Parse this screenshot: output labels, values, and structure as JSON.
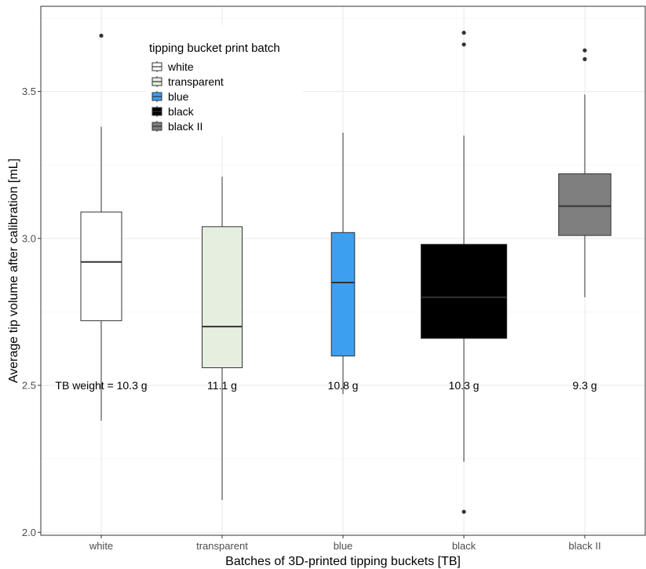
{
  "chart_data": {
    "type": "boxplot",
    "xlabel": "Batches of 3D-printed tipping buckets [TB]",
    "ylabel": "Average tip volume after calibration [mL]",
    "ylim": [
      1.99,
      3.79
    ],
    "yticks": [
      2.0,
      2.5,
      3.0,
      3.5
    ],
    "ytick_labels": [
      "2.0",
      "2.5",
      "3.0",
      "3.5"
    ],
    "grid": true,
    "legend": {
      "title": "tipping bucket print batch",
      "placement": "top-left",
      "entries": [
        "white",
        "transparent",
        "blue",
        "black",
        "black II"
      ]
    },
    "categories": [
      "white",
      "transparent",
      "blue",
      "black",
      "black II"
    ],
    "colors": [
      "#ffffff",
      "#e5eedf",
      "#3c9ff0",
      "#000000",
      "#7f7f7f"
    ],
    "box_widths": [
      1.0,
      0.98,
      0.57,
      2.1,
      1.28
    ],
    "series": [
      {
        "name": "white",
        "whisker_low": 2.38,
        "q1": 2.72,
        "median": 2.92,
        "q3": 3.09,
        "whisker_high": 3.38,
        "outliers": [
          3.69
        ]
      },
      {
        "name": "transparent",
        "whisker_low": 2.11,
        "q1": 2.56,
        "median": 2.7,
        "q3": 3.04,
        "whisker_high": 3.21,
        "outliers": []
      },
      {
        "name": "blue",
        "whisker_low": 2.47,
        "q1": 2.6,
        "median": 2.85,
        "q3": 3.02,
        "whisker_high": 3.36,
        "outliers": []
      },
      {
        "name": "black",
        "whisker_low": 2.24,
        "q1": 2.66,
        "median": 2.8,
        "q3": 2.98,
        "whisker_high": 3.35,
        "outliers": [
          3.7,
          3.66,
          2.07
        ]
      },
      {
        "name": "black II",
        "whisker_low": 2.8,
        "q1": 3.01,
        "median": 3.11,
        "q3": 3.22,
        "whisker_high": 3.49,
        "outliers": [
          3.64,
          3.61
        ]
      }
    ],
    "annotations": [
      {
        "text": "TB weight = 10.3 g",
        "x": "white",
        "y": 2.5
      },
      {
        "text": "11.1 g",
        "x": "transparent",
        "y": 2.5
      },
      {
        "text": "10.8 g",
        "x": "blue",
        "y": 2.5
      },
      {
        "text": "10.3 g",
        "x": "black",
        "y": 2.5
      },
      {
        "text": "9.3 g",
        "x": "black II",
        "y": 2.5
      }
    ]
  }
}
